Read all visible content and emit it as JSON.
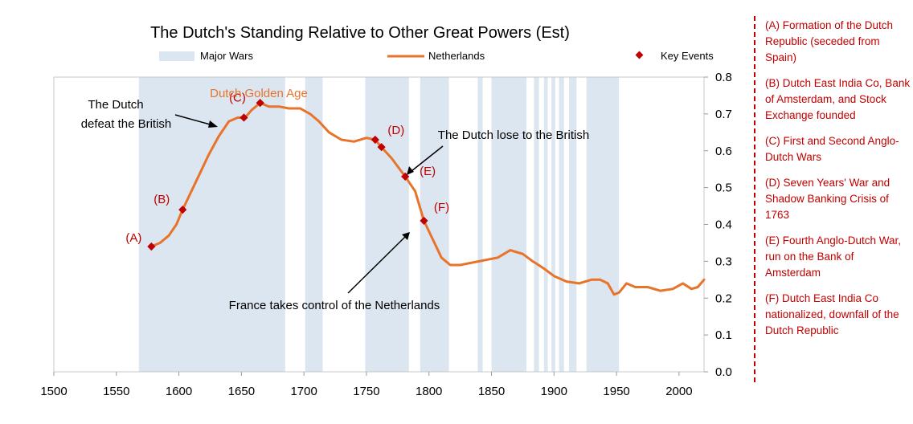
{
  "chart_data": {
    "type": "line",
    "title": "The Dutch's Standing Relative to Other Great Powers (Est)",
    "xlabel": "",
    "ylabel": "",
    "xlim": [
      1500,
      2020
    ],
    "ylim": [
      0.0,
      0.8
    ],
    "x_ticks": [
      1500,
      1550,
      1600,
      1650,
      1700,
      1750,
      1800,
      1850,
      1900,
      1950,
      2000
    ],
    "y_ticks": [
      "0.0",
      "0.1",
      "0.2",
      "0.3",
      "0.4",
      "0.5",
      "0.6",
      "0.7",
      "0.8"
    ],
    "legend": [
      {
        "label": "Major Wars",
        "color": "#dce6f0",
        "kind": "band"
      },
      {
        "label": "Netherlands",
        "color": "#e8732a",
        "kind": "line"
      },
      {
        "label": "Key Events",
        "color": "#c00000",
        "kind": "marker"
      }
    ],
    "war_periods": [
      [
        1568,
        1685
      ],
      [
        1701,
        1715
      ],
      [
        1749,
        1784
      ],
      [
        1793,
        1816
      ],
      [
        1839,
        1843
      ],
      [
        1850,
        1878
      ],
      [
        1884,
        1888
      ],
      [
        1892,
        1895
      ],
      [
        1898,
        1901
      ],
      [
        1904,
        1908
      ],
      [
        1912,
        1918
      ],
      [
        1926,
        1952
      ]
    ],
    "series": [
      {
        "name": "Netherlands",
        "color": "#e8732a",
        "x": [
          1578,
          1585,
          1592,
          1598,
          1603,
          1610,
          1617,
          1624,
          1632,
          1640,
          1647,
          1653,
          1658,
          1665,
          1672,
          1680,
          1688,
          1697,
          1705,
          1712,
          1720,
          1730,
          1740,
          1750,
          1757,
          1762,
          1770,
          1781,
          1789,
          1796,
          1803,
          1810,
          1817,
          1825,
          1840,
          1855,
          1865,
          1875,
          1883,
          1892,
          1900,
          1910,
          1920,
          1930,
          1937,
          1943,
          1948,
          1952,
          1958,
          1965,
          1975,
          1985,
          1995,
          2003,
          2010,
          2015,
          2020
        ],
        "values": [
          0.34,
          0.35,
          0.37,
          0.4,
          0.44,
          0.49,
          0.54,
          0.59,
          0.64,
          0.68,
          0.69,
          0.69,
          0.71,
          0.73,
          0.72,
          0.72,
          0.715,
          0.715,
          0.7,
          0.68,
          0.65,
          0.63,
          0.625,
          0.635,
          0.63,
          0.61,
          0.58,
          0.53,
          0.49,
          0.41,
          0.36,
          0.31,
          0.29,
          0.29,
          0.3,
          0.31,
          0.33,
          0.32,
          0.3,
          0.28,
          0.26,
          0.245,
          0.24,
          0.25,
          0.25,
          0.24,
          0.21,
          0.215,
          0.24,
          0.23,
          0.23,
          0.22,
          0.225,
          0.24,
          0.225,
          0.23,
          0.25
        ]
      }
    ],
    "key_events": [
      {
        "label": "(A)",
        "x": 1578,
        "y": 0.34
      },
      {
        "label": "(B)",
        "x": 1603,
        "y": 0.44
      },
      {
        "label": "(C)",
        "x": 1652,
        "y": 0.69
      },
      {
        "label": "",
        "x": 1665,
        "y": 0.73
      },
      {
        "label": "(D)",
        "x": 1757,
        "y": 0.63
      },
      {
        "label": "",
        "x": 1762,
        "y": 0.61
      },
      {
        "label": "(E)",
        "x": 1781,
        "y": 0.53
      },
      {
        "label": "(F)",
        "x": 1796,
        "y": 0.41
      }
    ],
    "annotations": {
      "golden_age": "Dutch Golden Age",
      "dutch_defeat_british_line1": "The Dutch",
      "dutch_defeat_british_line2": "defeat the British",
      "dutch_lose": "The Dutch lose to the British",
      "france_control": "France takes control of the Netherlands"
    },
    "notes": [
      "(A) Formation of the Dutch Republic (seceded from Spain)",
      "(B) Dutch East India Co, Bank of Amsterdam, and Stock Exchange founded",
      "(C) First and Second Anglo-Dutch Wars",
      "(D) Seven Years' War and Shadow Banking Crisis of 1763",
      "(E) Fourth Anglo-Dutch War, run on the Bank of Amsterdam",
      "(F) Dutch East India Co nationalized, downfall of the Dutch Republic"
    ]
  }
}
